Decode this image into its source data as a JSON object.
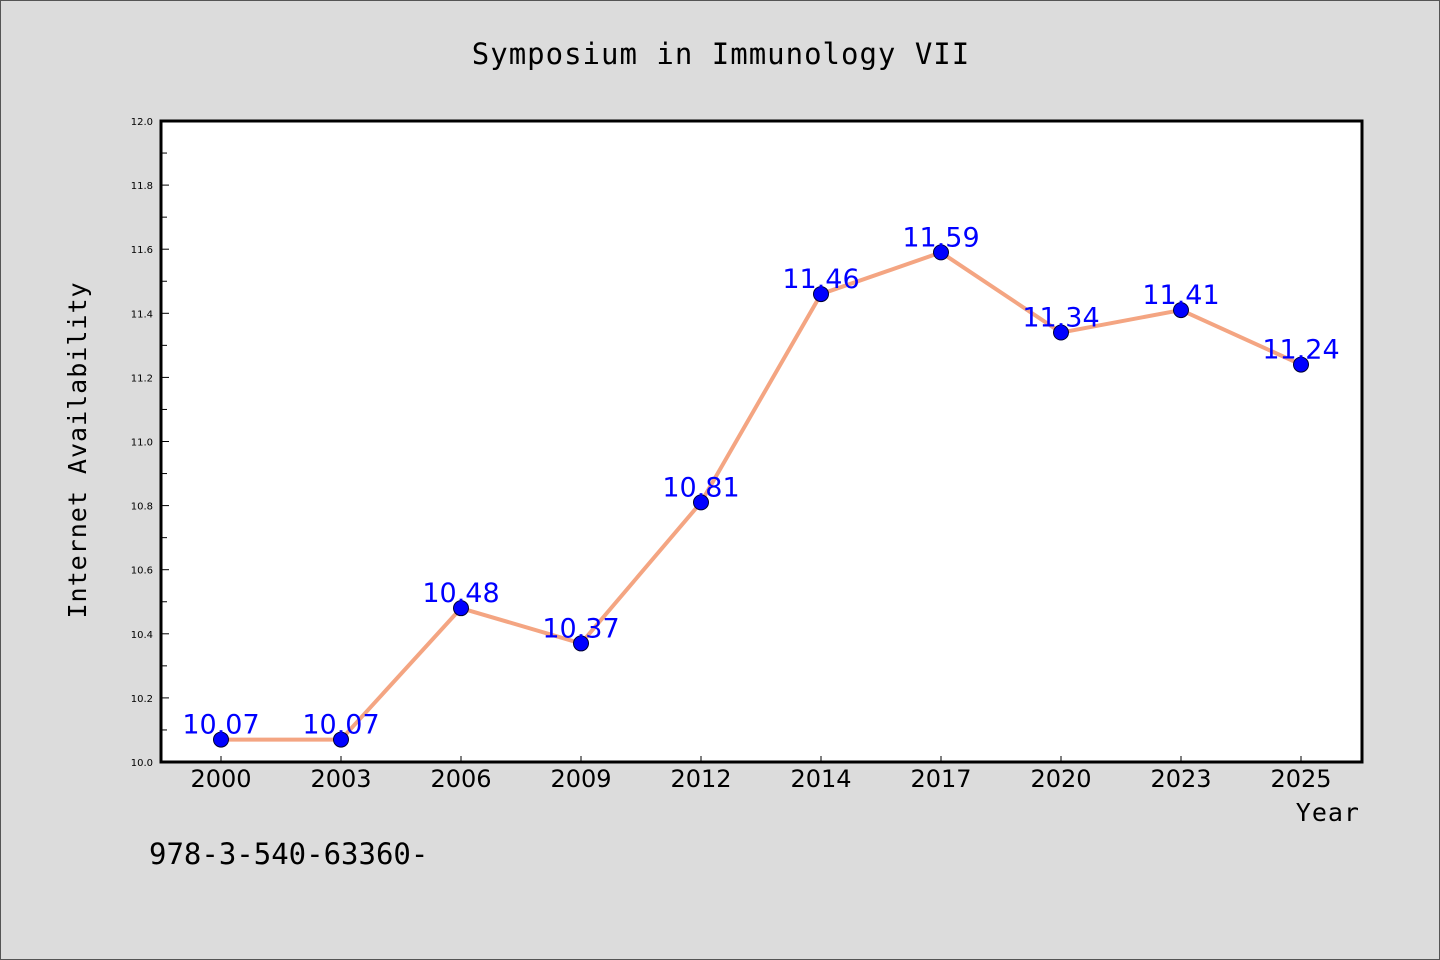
{
  "chart_data": {
    "type": "line",
    "title": "Symposium in Immunology VII",
    "xlabel": "Year",
    "ylabel": "Internet Availability",
    "categories": [
      "2000",
      "2003",
      "2006",
      "2009",
      "2012",
      "2014",
      "2017",
      "2020",
      "2023",
      "2025"
    ],
    "series": [
      {
        "values": [
          10.07,
          10.07,
          10.48,
          10.37,
          10.81,
          11.46,
          11.59,
          11.34,
          11.41,
          11.24
        ],
        "data_labels": [
          "10.07",
          "10.07",
          "10.48",
          "10.37",
          "10.81",
          "11.46",
          "11.59",
          "11.34",
          "11.41",
          "11.24"
        ]
      }
    ],
    "ylim": [
      10.0,
      12.0
    ],
    "yticks": [
      "10.0",
      "10.2",
      "10.4",
      "10.6",
      "10.8",
      "11.0",
      "11.2",
      "11.4",
      "11.6",
      "11.8",
      "12.0"
    ],
    "grid": false,
    "colors": {
      "line": "#f4a582",
      "marker": "#0000ff",
      "label": "#0000ff",
      "plot_bg": "#ffffff",
      "figure_bg": "#dcdcdc"
    }
  },
  "footnote": "978-3-540-63360-"
}
